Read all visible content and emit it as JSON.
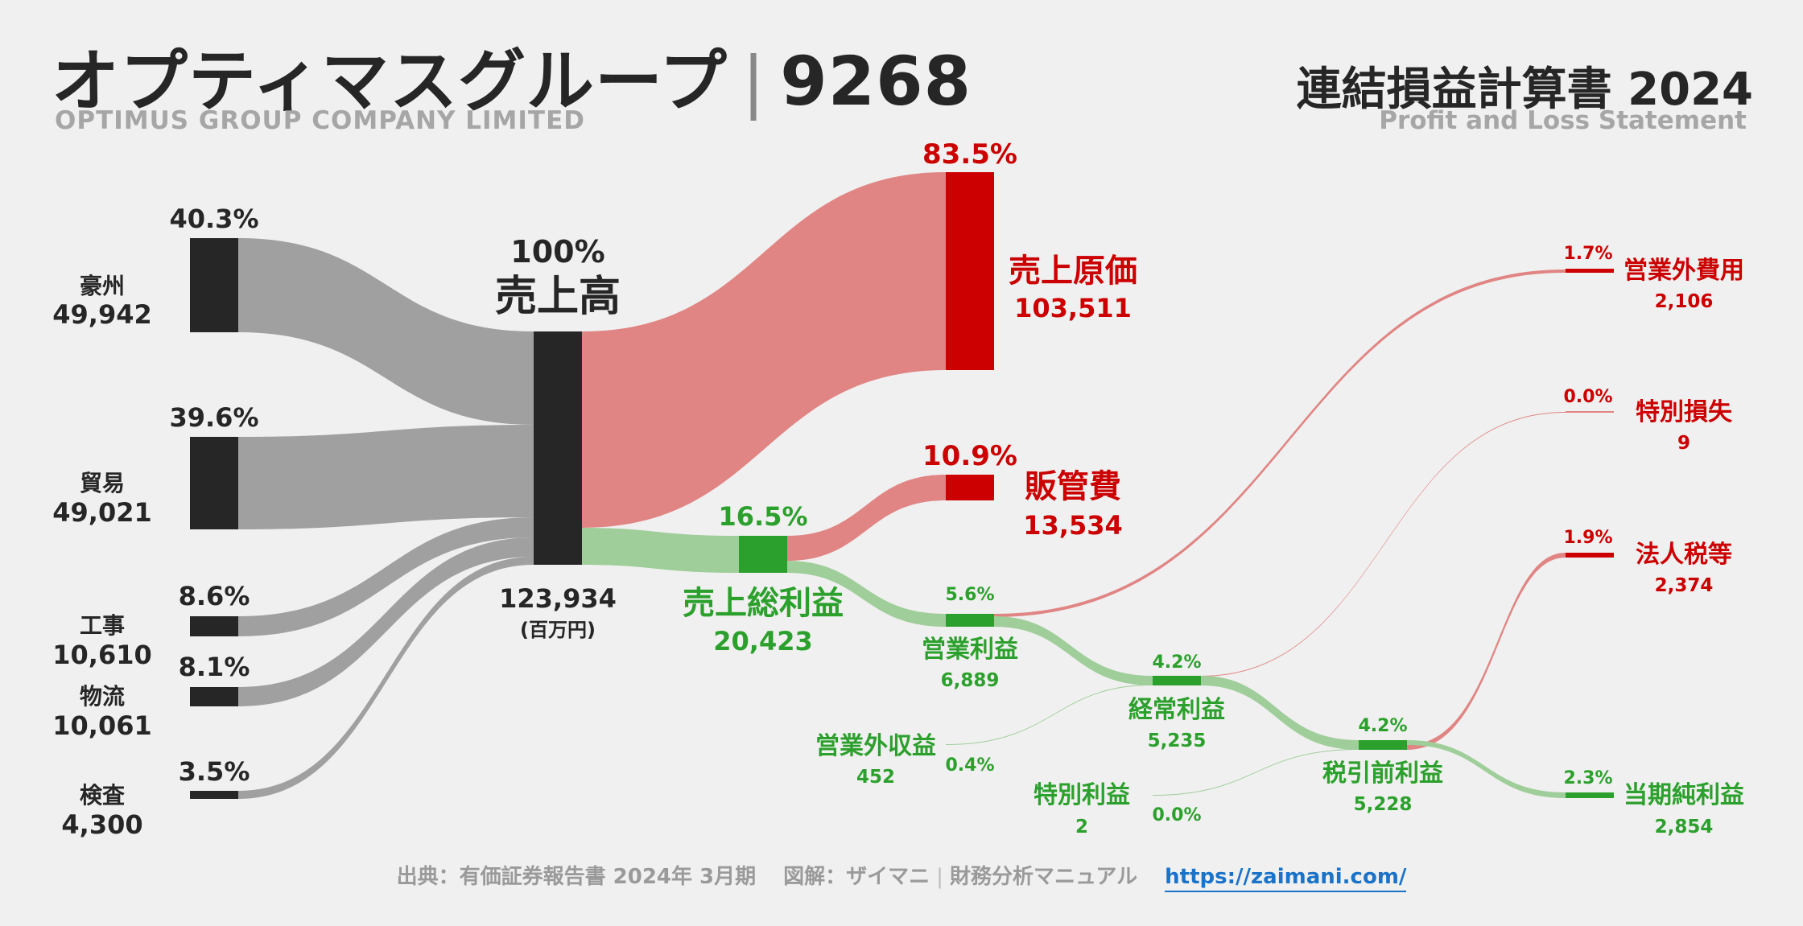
{
  "header": {
    "company": "オプティマスグループ",
    "code": "9268",
    "company_en": "OPTIMUS GROUP COMPANY LIMITED",
    "statement": "連結損益計算書 2024",
    "statement_en": "Profit and Loss Statement"
  },
  "footer": {
    "source": "出典：有価証券報告書 2024年 3月期",
    "credit": "図解：ザイマニ",
    "credit2": "財務分析マニュアル",
    "url": "https://zaimani.com/"
  },
  "colors": {
    "dark": "#262626",
    "gray_flow": "#a0a0a0",
    "red": "#cc0000",
    "red_flow": "#e08583",
    "green": "#2ca02c",
    "green_flow": "#9fce9a"
  },
  "chart_data": {
    "type": "sankey",
    "unit": "(百万円)",
    "revenue": {
      "label": "売上高",
      "value": "123,934",
      "pct": "100%"
    },
    "segments": [
      {
        "name": "豪州",
        "value": "49,942",
        "pct": "40.3%"
      },
      {
        "name": "貿易",
        "value": "49,021",
        "pct": "39.6%"
      },
      {
        "name": "工事",
        "value": "10,610",
        "pct": "8.6%"
      },
      {
        "name": "物流",
        "value": "10,061",
        "pct": "8.1%"
      },
      {
        "name": "検査",
        "value": "4,300",
        "pct": "3.5%"
      }
    ],
    "cost_of_sales": {
      "label": "売上原価",
      "value": "103,511",
      "pct": "83.5%"
    },
    "sga": {
      "label": "販管費",
      "value": "13,534",
      "pct": "10.9%"
    },
    "gross_profit": {
      "label": "売上総利益",
      "value": "20,423",
      "pct": "16.5%"
    },
    "operating_profit": {
      "label": "営業利益",
      "value": "6,889",
      "pct": "5.6%"
    },
    "non_op_income": {
      "label": "営業外収益",
      "value": "452",
      "pct": "0.4%"
    },
    "non_op_expense": {
      "label": "営業外費用",
      "value": "2,106",
      "pct": "1.7%"
    },
    "ordinary_profit": {
      "label": "経常利益",
      "value": "5,235",
      "pct": "4.2%"
    },
    "extra_gain": {
      "label": "特別利益",
      "value": "2",
      "pct": "0.0%"
    },
    "extra_loss": {
      "label": "特別損失",
      "value": "9",
      "pct": "0.0%"
    },
    "pretax_profit": {
      "label": "税引前利益",
      "value": "5,228",
      "pct": "4.2%"
    },
    "income_tax": {
      "label": "法人税等",
      "value": "2,374",
      "pct": "1.9%"
    },
    "net_profit": {
      "label": "当期純利益",
      "value": "2,854",
      "pct": "2.3%"
    }
  }
}
